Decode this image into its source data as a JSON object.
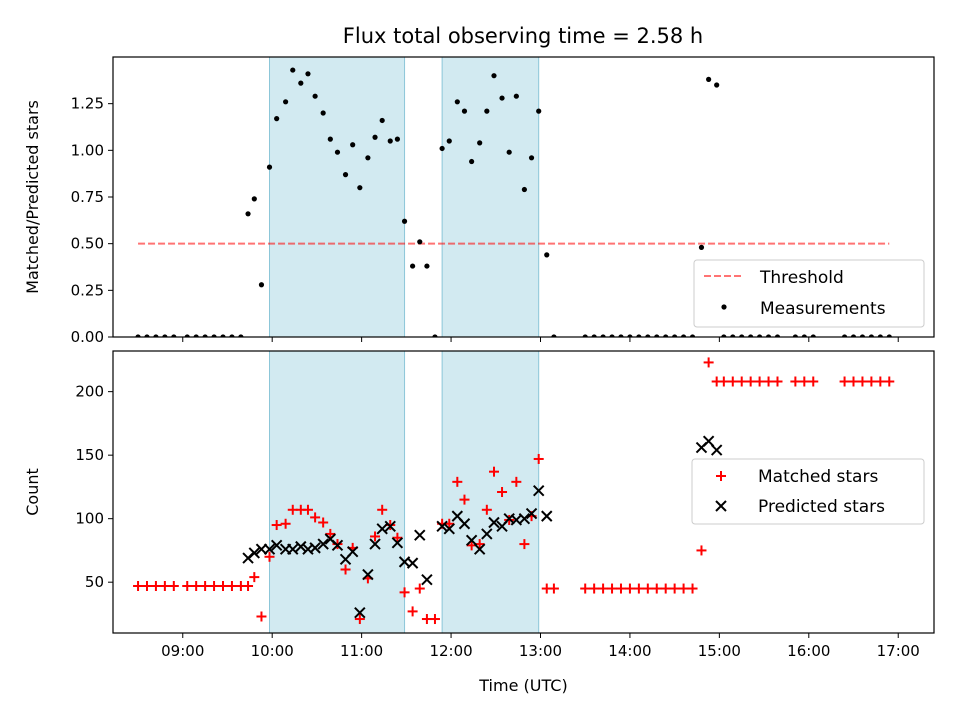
{
  "title": "Flux total observing time = 2.58 h",
  "colors": {
    "shade": "#add8e6",
    "threshold": "#ff0000",
    "measure": "#000000",
    "matched": "#ff0000",
    "predicted": "#000000"
  },
  "chart_data": [
    {
      "type": "scatter",
      "panel": "top",
      "ylabel": "Matched/Predicted stars",
      "ylim": [
        0,
        1.5
      ],
      "yticks": [
        0.0,
        0.25,
        0.5,
        0.75,
        1.0,
        1.25
      ],
      "yticklabels": [
        "0.00",
        "0.25",
        "0.50",
        "0.75",
        "1.00",
        "1.25"
      ],
      "xlim": [
        8.22,
        17.4
      ],
      "shaded_intervals": [
        [
          9.97,
          11.48
        ],
        [
          11.9,
          12.98
        ]
      ],
      "threshold": {
        "name": "Threshold",
        "y": 0.5,
        "x": [
          8.5,
          16.9
        ]
      },
      "legend": {
        "position": "lower-right",
        "entries": [
          "Threshold",
          "Measurements"
        ]
      },
      "series": [
        {
          "name": "Measurements",
          "marker": "dot",
          "points": [
            [
              8.5,
              0
            ],
            [
              8.6,
              0
            ],
            [
              8.7,
              0
            ],
            [
              8.8,
              0
            ],
            [
              8.9,
              0
            ],
            [
              9.05,
              0
            ],
            [
              9.15,
              0
            ],
            [
              9.25,
              0
            ],
            [
              9.35,
              0
            ],
            [
              9.45,
              0
            ],
            [
              9.55,
              0
            ],
            [
              9.65,
              0
            ],
            [
              9.73,
              0.66
            ],
            [
              9.8,
              0.74
            ],
            [
              9.88,
              0.28
            ],
            [
              9.97,
              0.91
            ],
            [
              10.05,
              1.17
            ],
            [
              10.15,
              1.26
            ],
            [
              10.23,
              1.43
            ],
            [
              10.32,
              1.36
            ],
            [
              10.4,
              1.41
            ],
            [
              10.48,
              1.29
            ],
            [
              10.57,
              1.2
            ],
            [
              10.65,
              1.06
            ],
            [
              10.73,
              0.99
            ],
            [
              10.82,
              0.87
            ],
            [
              10.9,
              1.03
            ],
            [
              10.98,
              0.8
            ],
            [
              11.07,
              0.96
            ],
            [
              11.15,
              1.07
            ],
            [
              11.23,
              1.16
            ],
            [
              11.32,
              1.05
            ],
            [
              11.4,
              1.06
            ],
            [
              11.48,
              0.62
            ],
            [
              11.57,
              0.38
            ],
            [
              11.65,
              0.51
            ],
            [
              11.73,
              0.38
            ],
            [
              11.82,
              0.0
            ],
            [
              11.9,
              1.01
            ],
            [
              11.98,
              1.05
            ],
            [
              12.07,
              1.26
            ],
            [
              12.15,
              1.21
            ],
            [
              12.23,
              0.94
            ],
            [
              12.32,
              1.04
            ],
            [
              12.4,
              1.21
            ],
            [
              12.48,
              1.4
            ],
            [
              12.57,
              1.28
            ],
            [
              12.65,
              0.99
            ],
            [
              12.73,
              1.29
            ],
            [
              12.82,
              0.79
            ],
            [
              12.9,
              0.96
            ],
            [
              12.98,
              1.21
            ],
            [
              13.07,
              0.44
            ],
            [
              13.15,
              0
            ],
            [
              13.5,
              0
            ],
            [
              13.6,
              0
            ],
            [
              13.7,
              0
            ],
            [
              13.8,
              0
            ],
            [
              13.9,
              0
            ],
            [
              14.0,
              0
            ],
            [
              14.1,
              0
            ],
            [
              14.2,
              0
            ],
            [
              14.3,
              0
            ],
            [
              14.4,
              0
            ],
            [
              14.5,
              0
            ],
            [
              14.6,
              0
            ],
            [
              14.7,
              0
            ],
            [
              14.8,
              0.48
            ],
            [
              14.88,
              1.38
            ],
            [
              14.97,
              1.35
            ],
            [
              15.05,
              0
            ],
            [
              15.15,
              0
            ],
            [
              15.25,
              0
            ],
            [
              15.35,
              0
            ],
            [
              15.45,
              0
            ],
            [
              15.55,
              0
            ],
            [
              15.65,
              0
            ],
            [
              15.85,
              0
            ],
            [
              15.95,
              0
            ],
            [
              16.05,
              0
            ],
            [
              16.4,
              0
            ],
            [
              16.5,
              0
            ],
            [
              16.6,
              0
            ],
            [
              16.7,
              0
            ],
            [
              16.8,
              0
            ],
            [
              16.9,
              0
            ]
          ]
        }
      ]
    },
    {
      "type": "scatter",
      "panel": "bottom",
      "ylabel": "Count",
      "xlabel": "Time (UTC)",
      "ylim": [
        10,
        232
      ],
      "yticks": [
        50,
        100,
        150,
        200
      ],
      "yticklabels": [
        "50",
        "100",
        "150",
        "200"
      ],
      "xlim": [
        8.22,
        17.4
      ],
      "xticks": [
        9,
        10,
        11,
        12,
        13,
        14,
        15,
        16,
        17
      ],
      "xticklabels": [
        "09:00",
        "10:00",
        "11:00",
        "12:00",
        "13:00",
        "14:00",
        "15:00",
        "16:00",
        "17:00"
      ],
      "shaded_intervals": [
        [
          9.97,
          11.48
        ],
        [
          11.9,
          12.98
        ]
      ],
      "legend": {
        "position": "center-right",
        "entries": [
          "Matched stars",
          "Predicted stars"
        ]
      },
      "series": [
        {
          "name": "Matched stars",
          "marker": "plus",
          "points": [
            [
              8.5,
              47
            ],
            [
              8.6,
              47
            ],
            [
              8.7,
              47
            ],
            [
              8.8,
              47
            ],
            [
              8.9,
              47
            ],
            [
              9.05,
              47
            ],
            [
              9.15,
              47
            ],
            [
              9.25,
              47
            ],
            [
              9.35,
              47
            ],
            [
              9.45,
              47
            ],
            [
              9.55,
              47
            ],
            [
              9.65,
              47
            ],
            [
              9.73,
              47
            ],
            [
              9.8,
              54
            ],
            [
              9.88,
              23
            ],
            [
              9.97,
              70
            ],
            [
              10.05,
              95
            ],
            [
              10.15,
              96
            ],
            [
              10.23,
              107
            ],
            [
              10.32,
              107
            ],
            [
              10.4,
              107
            ],
            [
              10.48,
              101
            ],
            [
              10.57,
              97
            ],
            [
              10.65,
              88
            ],
            [
              10.73,
              80
            ],
            [
              10.82,
              60
            ],
            [
              10.9,
              77
            ],
            [
              10.98,
              21
            ],
            [
              11.07,
              53
            ],
            [
              11.15,
              86
            ],
            [
              11.23,
              107
            ],
            [
              11.32,
              95
            ],
            [
              11.4,
              85
            ],
            [
              11.48,
              42
            ],
            [
              11.57,
              27
            ],
            [
              11.65,
              45
            ],
            [
              11.73,
              21
            ],
            [
              11.82,
              21
            ],
            [
              11.9,
              96
            ],
            [
              11.98,
              96
            ],
            [
              12.07,
              129
            ],
            [
              12.15,
              115
            ],
            [
              12.23,
              79
            ],
            [
              12.32,
              80
            ],
            [
              12.4,
              107
            ],
            [
              12.48,
              137
            ],
            [
              12.57,
              121
            ],
            [
              12.65,
              99
            ],
            [
              12.73,
              129
            ],
            [
              12.82,
              80
            ],
            [
              12.9,
              102
            ],
            [
              12.98,
              147
            ],
            [
              13.07,
              45
            ],
            [
              13.15,
              45
            ],
            [
              13.5,
              45
            ],
            [
              13.6,
              45
            ],
            [
              13.7,
              45
            ],
            [
              13.8,
              45
            ],
            [
              13.9,
              45
            ],
            [
              14.0,
              45
            ],
            [
              14.1,
              45
            ],
            [
              14.2,
              45
            ],
            [
              14.3,
              45
            ],
            [
              14.4,
              45
            ],
            [
              14.5,
              45
            ],
            [
              14.6,
              45
            ],
            [
              14.7,
              45
            ],
            [
              14.8,
              75
            ],
            [
              14.88,
              223
            ],
            [
              14.97,
              208
            ],
            [
              15.05,
              208
            ],
            [
              15.15,
              208
            ],
            [
              15.25,
              208
            ],
            [
              15.35,
              208
            ],
            [
              15.45,
              208
            ],
            [
              15.55,
              208
            ],
            [
              15.65,
              208
            ],
            [
              15.85,
              208
            ],
            [
              15.95,
              208
            ],
            [
              16.05,
              208
            ],
            [
              16.4,
              208
            ],
            [
              16.5,
              208
            ],
            [
              16.6,
              208
            ],
            [
              16.7,
              208
            ],
            [
              16.8,
              208
            ],
            [
              16.9,
              208
            ]
          ]
        },
        {
          "name": "Predicted stars",
          "marker": "x",
          "points": [
            [
              9.73,
              69
            ],
            [
              9.8,
              73
            ],
            [
              9.88,
              76
            ],
            [
              9.97,
              76
            ],
            [
              10.05,
              79
            ],
            [
              10.15,
              76
            ],
            [
              10.23,
              76
            ],
            [
              10.32,
              78
            ],
            [
              10.4,
              76
            ],
            [
              10.48,
              77
            ],
            [
              10.57,
              80
            ],
            [
              10.65,
              84
            ],
            [
              10.73,
              79
            ],
            [
              10.82,
              68
            ],
            [
              10.9,
              74
            ],
            [
              10.98,
              26
            ],
            [
              11.07,
              56
            ],
            [
              11.15,
              80
            ],
            [
              11.23,
              92
            ],
            [
              11.32,
              94
            ],
            [
              11.4,
              81
            ],
            [
              11.48,
              66
            ],
            [
              11.57,
              65
            ],
            [
              11.65,
              87
            ],
            [
              11.73,
              52
            ],
            [
              11.9,
              94
            ],
            [
              11.98,
              92
            ],
            [
              12.07,
              102
            ],
            [
              12.15,
              96
            ],
            [
              12.23,
              83
            ],
            [
              12.32,
              76
            ],
            [
              12.4,
              88
            ],
            [
              12.48,
              97
            ],
            [
              12.57,
              94
            ],
            [
              12.65,
              100
            ],
            [
              12.73,
              99
            ],
            [
              12.82,
              100
            ],
            [
              12.9,
              104
            ],
            [
              12.98,
              122
            ],
            [
              13.07,
              102
            ],
            [
              14.8,
              156
            ],
            [
              14.88,
              161
            ],
            [
              14.97,
              154
            ]
          ]
        }
      ]
    }
  ]
}
